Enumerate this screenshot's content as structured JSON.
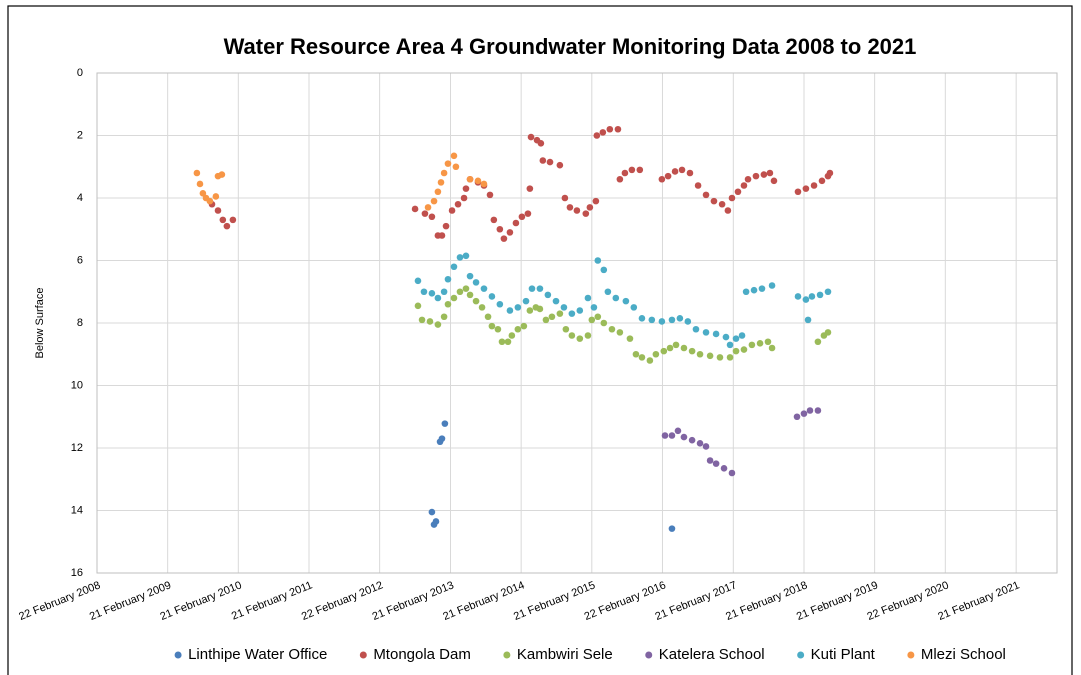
{
  "chart_data": {
    "type": "scatter",
    "title": "Water Resource Area 4 Groundwater Monitoring Data 2008 to 2021",
    "ylabel": "Below Surface",
    "ylim": [
      0,
      16
    ],
    "y_reversed": true,
    "yticks": [
      0,
      2,
      4,
      6,
      8,
      10,
      12,
      14,
      16
    ],
    "xlim": [
      "2008-02-22",
      "2021-09-20"
    ],
    "xticks": [
      {
        "value": "2008-02-22",
        "label": "22 February 2008"
      },
      {
        "value": "2009-02-21",
        "label": "21 February 2009"
      },
      {
        "value": "2010-02-21",
        "label": "21 February 2010"
      },
      {
        "value": "2011-02-21",
        "label": "21 February 2011"
      },
      {
        "value": "2012-02-21",
        "label": "22 February 2012"
      },
      {
        "value": "2013-02-21",
        "label": "21 February 2013"
      },
      {
        "value": "2014-02-21",
        "label": "21 February 2014"
      },
      {
        "value": "2015-02-21",
        "label": "21 February 2015"
      },
      {
        "value": "2016-02-21",
        "label": "22 February 2016"
      },
      {
        "value": "2017-02-21",
        "label": "21 February 2017"
      },
      {
        "value": "2018-02-21",
        "label": "21 February 2018"
      },
      {
        "value": "2019-02-21",
        "label": "21 February 2019"
      },
      {
        "value": "2020-02-21",
        "label": "22 February 2020"
      },
      {
        "value": "2021-02-21",
        "label": "21 February 2021"
      }
    ],
    "grid": true,
    "legend": "bottom",
    "series": [
      {
        "name": "Linthipe Water Office",
        "color": "#4a7ebb",
        "x": [
          "2012-11-17",
          "2012-11-28",
          "2012-12-08",
          "2012-12-29",
          "2013-01-08",
          "2013-01-23",
          "2016-04-10"
        ],
        "values": [
          14.05,
          14.45,
          14.35,
          11.8,
          11.7,
          11.22,
          14.58
        ]
      },
      {
        "name": "Mtongola Dam",
        "color": "#c0504d",
        "x": [
          "2009-10-08",
          "2009-11-08",
          "2009-12-03",
          "2009-12-24",
          "2010-01-24",
          "2012-08-22",
          "2012-10-12",
          "2012-11-17",
          "2012-12-18",
          "2013-01-08",
          "2013-01-29",
          "2013-03-01",
          "2013-04-01",
          "2013-05-02",
          "2013-05-12",
          "2013-06-02",
          "2013-07-13",
          "2013-08-13",
          "2013-09-13",
          "2013-10-03",
          "2013-11-03",
          "2013-11-24",
          "2013-12-25",
          "2014-01-25",
          "2014-02-25",
          "2014-03-28",
          "2014-04-07",
          "2014-04-13",
          "2014-05-14",
          "2014-06-03",
          "2014-06-13",
          "2014-07-20",
          "2014-09-09",
          "2014-10-05",
          "2014-10-31",
          "2014-12-06",
          "2015-01-21",
          "2015-02-11",
          "2015-03-14",
          "2015-03-19",
          "2015-04-19",
          "2015-05-25",
          "2015-07-06",
          "2015-07-16",
          "2015-08-11",
          "2015-09-16",
          "2015-10-27",
          "2016-02-18",
          "2016-03-21",
          "2016-04-26",
          "2016-06-01",
          "2016-07-12",
          "2016-08-23",
          "2016-10-03",
          "2016-11-13",
          "2016-12-25",
          "2017-01-24",
          "2017-02-14",
          "2017-03-17",
          "2017-04-17",
          "2017-05-08",
          "2017-06-18",
          "2017-07-29",
          "2017-08-29",
          "2017-09-19",
          "2018-01-21",
          "2018-03-03",
          "2018-04-14",
          "2018-05-25",
          "2018-06-25",
          "2018-07-05"
        ],
        "values": [
          4.2,
          4.4,
          4.7,
          4.9,
          4.7,
          4.35,
          4.5,
          4.6,
          5.2,
          5.2,
          4.9,
          4.4,
          4.2,
          4.0,
          3.7,
          3.4,
          3.5,
          3.6,
          3.9,
          4.7,
          5.0,
          5.3,
          5.1,
          4.8,
          4.6,
          4.5,
          3.7,
          2.05,
          2.15,
          2.25,
          2.8,
          2.85,
          2.95,
          4.0,
          4.3,
          4.4,
          4.5,
          4.3,
          4.1,
          2.0,
          1.9,
          1.8,
          1.8,
          3.4,
          3.2,
          3.1,
          3.1,
          3.4,
          3.3,
          3.15,
          3.1,
          3.2,
          3.6,
          3.9,
          4.1,
          4.2,
          4.4,
          4.0,
          3.8,
          3.6,
          3.4,
          3.3,
          3.25,
          3.2,
          3.45,
          3.8,
          3.7,
          3.6,
          3.45,
          3.3,
          3.2
        ]
      },
      {
        "name": "Kambwiri Sele",
        "color": "#9bbb59",
        "x": [
          "2012-09-06",
          "2012-09-27",
          "2012-11-07",
          "2012-12-18",
          "2013-01-19",
          "2013-02-08",
          "2013-03-11",
          "2013-04-11",
          "2013-05-12",
          "2013-06-02",
          "2013-07-03",
          "2013-08-03",
          "2013-09-03",
          "2013-09-23",
          "2013-10-24",
          "2013-11-14",
          "2013-12-15",
          "2014-01-04",
          "2014-02-04",
          "2014-03-07",
          "2014-04-07",
          "2014-05-08",
          "2014-05-29",
          "2014-06-29",
          "2014-07-30",
          "2014-09-09",
          "2014-10-10",
          "2014-11-10",
          "2014-12-21",
          "2015-02-01",
          "2015-02-21",
          "2015-03-24",
          "2015-04-24",
          "2015-06-05",
          "2015-07-16",
          "2015-09-06",
          "2015-10-07",
          "2015-11-07",
          "2015-12-18",
          "2016-01-18",
          "2016-02-28",
          "2016-03-31",
          "2016-05-01",
          "2016-06-11",
          "2016-07-23",
          "2016-09-02",
          "2016-10-24",
          "2016-12-14",
          "2017-02-04",
          "2017-03-07",
          "2017-04-17",
          "2017-05-28",
          "2017-07-09",
          "2017-08-19",
          "2017-09-09",
          "2018-05-04",
          "2018-06-04",
          "2018-06-25"
        ],
        "values": [
          7.45,
          7.9,
          7.95,
          8.05,
          7.8,
          7.4,
          7.2,
          7.0,
          6.9,
          7.1,
          7.3,
          7.5,
          7.8,
          8.1,
          8.2,
          8.6,
          8.6,
          8.4,
          8.2,
          8.1,
          7.6,
          7.5,
          7.55,
          7.9,
          7.8,
          7.7,
          8.2,
          8.4,
          8.5,
          8.4,
          7.9,
          7.8,
          8.0,
          8.2,
          8.3,
          8.5,
          9.0,
          9.1,
          9.2,
          9.0,
          8.9,
          8.8,
          8.7,
          8.8,
          8.9,
          9.0,
          9.05,
          9.1,
          9.1,
          8.9,
          8.85,
          8.7,
          8.65,
          8.6,
          8.8,
          8.6,
          8.4,
          8.3
        ]
      },
      {
        "name": "Katelera School",
        "color": "#8064a2",
        "x": [
          "2016-03-05",
          "2016-04-10",
          "2016-05-11",
          "2016-06-11",
          "2016-07-23",
          "2016-09-02",
          "2016-10-03",
          "2016-10-24",
          "2016-11-24",
          "2017-01-04",
          "2017-02-14",
          "2018-01-16",
          "2018-02-21",
          "2018-03-24",
          "2018-05-04"
        ],
        "values": [
          11.6,
          11.6,
          11.45,
          11.65,
          11.75,
          11.85,
          11.95,
          12.4,
          12.5,
          12.65,
          12.8,
          11.0,
          10.9,
          10.8,
          10.8
        ]
      },
      {
        "name": "Kuti Plant",
        "color": "#4bacc6",
        "x": [
          "2012-09-06",
          "2012-10-07",
          "2012-11-17",
          "2012-12-18",
          "2013-01-19",
          "2013-02-08",
          "2013-03-11",
          "2013-04-11",
          "2013-05-12",
          "2013-06-02",
          "2013-07-03",
          "2013-08-13",
          "2013-09-23",
          "2013-11-03",
          "2013-12-25",
          "2014-02-04",
          "2014-03-18",
          "2014-04-18",
          "2014-05-29",
          "2014-07-09",
          "2014-08-20",
          "2014-09-30",
          "2014-11-10",
          "2014-12-21",
          "2015-02-01",
          "2015-03-04",
          "2015-03-24",
          "2015-04-24",
          "2015-05-15",
          "2015-06-25",
          "2015-08-16",
          "2015-09-26",
          "2015-11-07",
          "2015-12-28",
          "2016-02-18",
          "2016-04-10",
          "2016-05-21",
          "2016-07-01",
          "2016-08-12",
          "2016-10-03",
          "2016-11-24",
          "2017-01-14",
          "2017-02-04",
          "2017-03-07",
          "2017-04-07",
          "2017-04-28",
          "2017-06-08",
          "2017-07-19",
          "2017-09-09",
          "2018-01-21",
          "2018-03-03",
          "2018-03-14",
          "2018-04-03",
          "2018-05-15",
          "2018-06-25"
        ],
        "values": [
          6.65,
          7.0,
          7.05,
          7.2,
          7.0,
          6.6,
          6.2,
          5.9,
          5.85,
          6.5,
          6.7,
          6.9,
          7.15,
          7.4,
          7.6,
          7.5,
          7.3,
          6.9,
          6.9,
          7.1,
          7.3,
          7.5,
          7.7,
          7.6,
          7.2,
          7.5,
          6.0,
          6.3,
          7.0,
          7.2,
          7.3,
          7.5,
          7.85,
          7.9,
          7.95,
          7.9,
          7.85,
          7.95,
          8.2,
          8.3,
          8.35,
          8.45,
          8.7,
          8.5,
          8.4,
          7.0,
          6.95,
          6.9,
          6.8,
          7.15,
          7.25,
          7.9,
          7.15,
          7.1,
          7.0
        ]
      },
      {
        "name": "Mlezi School",
        "color": "#f79646",
        "x": [
          "2009-07-22",
          "2009-08-07",
          "2009-08-22",
          "2009-09-07",
          "2009-09-27",
          "2009-10-28",
          "2009-11-08",
          "2009-11-28",
          "2012-10-28",
          "2012-11-28",
          "2012-12-18",
          "2013-01-03",
          "2013-01-19",
          "2013-02-08",
          "2013-03-11",
          "2013-03-21",
          "2013-06-02",
          "2013-07-13",
          "2013-08-13"
        ],
        "values": [
          3.2,
          3.55,
          3.85,
          4.0,
          4.1,
          3.95,
          3.3,
          3.25,
          4.3,
          4.1,
          3.8,
          3.5,
          3.2,
          2.9,
          2.65,
          3.0,
          3.4,
          3.45,
          3.55
        ]
      }
    ]
  }
}
